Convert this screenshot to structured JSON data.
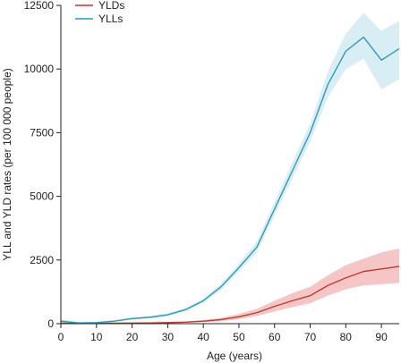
{
  "chart_data": {
    "type": "line",
    "xlabel": "Age (years)",
    "ylabel": "YLL and YLD rates (per 100 000 people)",
    "xlim": [
      0,
      95
    ],
    "ylim": [
      0,
      12500
    ],
    "xticks": [
      0,
      10,
      20,
      30,
      40,
      50,
      60,
      70,
      80,
      90
    ],
    "yticks": [
      0,
      2500,
      5000,
      7500,
      10000,
      12500
    ],
    "xtick_labels": [
      "0",
      "10",
      "20",
      "30",
      "40",
      "50",
      "60",
      "70",
      "80",
      "90"
    ],
    "ytick_labels": [
      "0",
      "2500",
      "5000",
      "7500",
      "10000",
      "12500"
    ],
    "grid": false,
    "legend_position": "top-left",
    "x": [
      0,
      5,
      10,
      15,
      20,
      25,
      30,
      35,
      40,
      45,
      50,
      55,
      60,
      65,
      70,
      75,
      80,
      85,
      90,
      95
    ],
    "series": [
      {
        "name": "YLDs",
        "color": "#c0392b",
        "band_color": "#f2b8b8",
        "values": [
          20,
          15,
          15,
          20,
          25,
          30,
          40,
          60,
          100,
          160,
          270,
          430,
          680,
          900,
          1100,
          1500,
          1800,
          2050,
          2150,
          2250
        ],
        "lower": [
          5,
          5,
          5,
          10,
          10,
          15,
          20,
          35,
          60,
          100,
          180,
          300,
          480,
          650,
          800,
          1100,
          1350,
          1500,
          1550,
          1600
        ],
        "upper": [
          40,
          30,
          30,
          35,
          40,
          50,
          65,
          90,
          140,
          230,
          380,
          580,
          900,
          1200,
          1450,
          1900,
          2300,
          2550,
          2800,
          2950
        ]
      },
      {
        "name": "YLLs",
        "color": "#2a9db5",
        "band_color": "#cfe8f3",
        "values": [
          100,
          30,
          40,
          100,
          200,
          250,
          350,
          550,
          900,
          1450,
          2200,
          3000,
          4500,
          6000,
          7500,
          9400,
          10700,
          11250,
          10350,
          10800
        ],
        "lower": [
          50,
          10,
          20,
          70,
          160,
          210,
          300,
          490,
          820,
          1330,
          2050,
          2800,
          4250,
          5700,
          7150,
          8900,
          10000,
          10400,
          9200,
          9600
        ],
        "upper": [
          180,
          60,
          70,
          140,
          250,
          300,
          410,
          620,
          990,
          1580,
          2360,
          3220,
          4780,
          6330,
          7850,
          9900,
          11400,
          12200,
          11500,
          11900
        ]
      }
    ]
  }
}
